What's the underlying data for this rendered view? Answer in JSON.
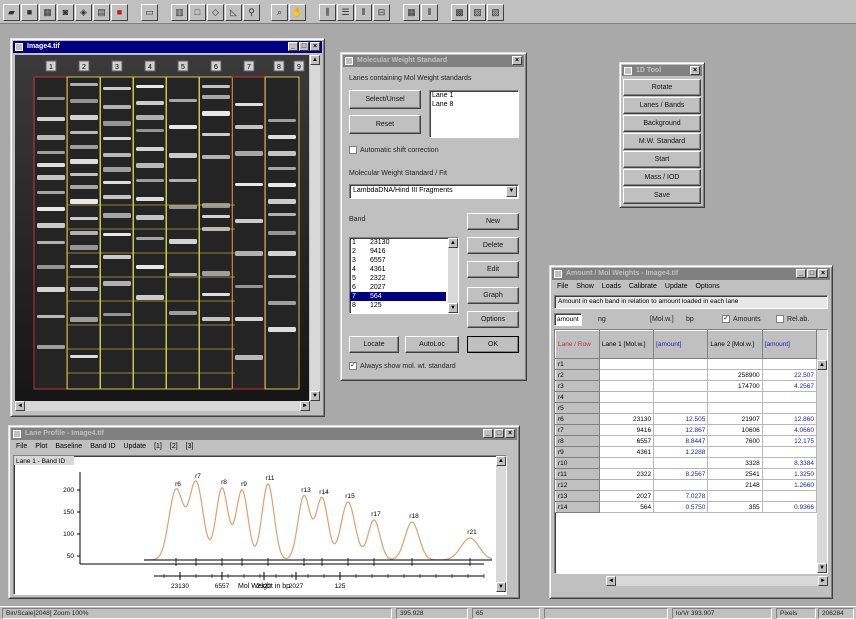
{
  "gel_window": {
    "title": "Image4.tif",
    "lane_labels": [
      "1",
      "2",
      "3",
      "4",
      "5",
      "6",
      "7",
      "8",
      "9"
    ]
  },
  "mw_dialog": {
    "title": "Molecular Weight Standard",
    "lanes_label": "Lanes containing Mol Weight standards",
    "select_unsel_label": "Select/Unsel",
    "reset_label": "Reset",
    "standard_lanes": [
      "Lane 1",
      "Lane 8"
    ],
    "auto_shift_label": "Automatic shift correction",
    "standard_label": "Molecular Weight Standard / Fit",
    "standard_value": "LambdaDNA/Hind III Fragments",
    "band_label": "Band",
    "bands": [
      {
        "num": "1",
        "val": "23130"
      },
      {
        "num": "2",
        "val": "9416"
      },
      {
        "num": "3",
        "val": "6557"
      },
      {
        "num": "4",
        "val": "4361"
      },
      {
        "num": "5",
        "val": "2322"
      },
      {
        "num": "6",
        "val": "2027"
      },
      {
        "num": "7",
        "val": "564"
      },
      {
        "num": "8",
        "val": "125"
      }
    ],
    "new_label": "New",
    "delete_label": "Delete",
    "edit_label": "Edit",
    "graph_label": "Graph",
    "options_label": "Options",
    "locate_label": "Locate",
    "autoloc_label": "AutoLoc",
    "ok_label": "OK",
    "always_show_label": "Always show mol. wt. standard"
  },
  "tool_palette": {
    "title": "1D Tool",
    "items": [
      "Rotate",
      "Lanes / Bands",
      "Background",
      "M.W. Standard",
      "Start",
      "Mass / IOD",
      "Save"
    ]
  },
  "results_window": {
    "title": "Amount / Mol Weights - Image4.tif",
    "menu": [
      "File",
      "Show",
      "Loads",
      "Calibrate",
      "Update",
      "Options"
    ],
    "info_text": "Amount in each band in relation to amount loaded in each lane",
    "unit_amount": "amount",
    "unit_mg": "ng",
    "unit_mw": "[Mol.w.]",
    "unit_bp": "bp",
    "amounts_label": "Amounts",
    "rel_label": "Rel.ab.",
    "col_header_0": "Lane / Row",
    "col_header_1": "Lane 1 [Mol.w.]",
    "col_header_2": "[amount]",
    "col_header_3": "Lane 2 [Mol.w.]",
    "col_header_4": "[amount]",
    "rows": [
      {
        "r": "r1",
        "a": "",
        "b": "",
        "c": "",
        "d": ""
      },
      {
        "r": "r2",
        "a": "",
        "b": "",
        "c": "258900",
        "d": "22.507"
      },
      {
        "r": "r3",
        "a": "",
        "b": "",
        "c": "174700",
        "d": "4.2567"
      },
      {
        "r": "r4",
        "a": "",
        "b": "",
        "c": "",
        "d": ""
      },
      {
        "r": "r5",
        "a": "",
        "b": "",
        "c": "",
        "d": ""
      },
      {
        "r": "r6",
        "a": "23130",
        "b": "12.505",
        "c": "21907",
        "d": "12.860"
      },
      {
        "r": "r7",
        "a": "9416",
        "b": "12.867",
        "c": "10606",
        "d": "4.0660"
      },
      {
        "r": "r8",
        "a": "6557",
        "b": "8.8447",
        "c": "7600",
        "d": "12.175"
      },
      {
        "r": "r9",
        "a": "4361",
        "b": "1.2288",
        "c": "",
        "d": ""
      },
      {
        "r": "r10",
        "a": "",
        "b": "",
        "c": "3328",
        "d": "8.3384"
      },
      {
        "r": "r11",
        "a": "2322",
        "b": "8.2567",
        "c": "2541",
        "d": "1.3250"
      },
      {
        "r": "r12",
        "a": "",
        "b": "",
        "c": "2148",
        "d": "1.2660"
      },
      {
        "r": "r13",
        "a": "2027",
        "b": "7.0278",
        "c": "",
        "d": ""
      },
      {
        "r": "r14",
        "a": "564",
        "b": "0.5750",
        "c": "355",
        "d": "0.9366"
      }
    ]
  },
  "lane_profile": {
    "title": "Lane Profile - Image4.tif",
    "menu": [
      "File",
      "Plot",
      "Baseline",
      "Band ID",
      "Update",
      "[1]",
      "[2]",
      "[3]"
    ],
    "lane_tag": "Lane 1 - Band ID",
    "peak_labels": [
      "r6",
      "r7",
      "r8",
      "r9",
      "r11",
      "r13",
      "r14",
      "r15",
      "r17",
      "r18",
      "r21"
    ],
    "y_ticks": [
      "200",
      "150",
      "100",
      "50"
    ],
    "x_ticks": [
      "23130",
      "6557",
      "2322",
      "2027",
      "125"
    ],
    "xlabel": "Mol Weight in bp"
  },
  "statusbar": {
    "left": "Bin/Scale[2048] Zoom 100%",
    "coords": "395.928",
    "val": "65",
    "mw": "lo/Vr 393.907",
    "pixels_label": "Pixels",
    "pixels_value": "206284"
  },
  "colors": {
    "titlebar_active": "#000080",
    "window_face": "#c0c0c0",
    "desktop": "#a9a9a9",
    "peak_curve": "#e0a070",
    "lane_box_yellow": "#c8c850",
    "lane_box_red": "#c03030"
  }
}
